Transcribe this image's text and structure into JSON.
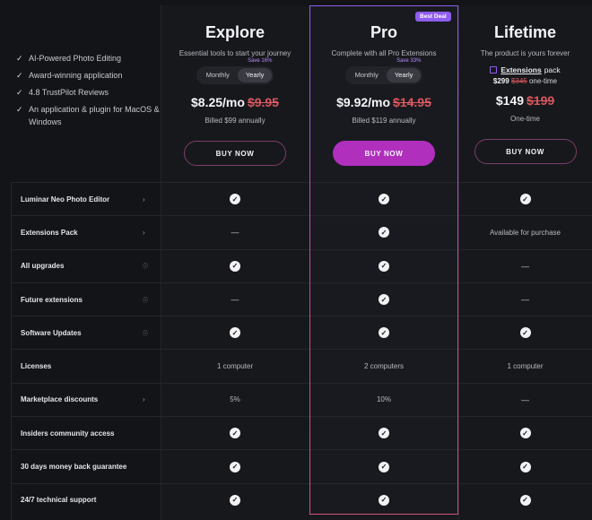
{
  "features": [
    "AI-Powered Photo Editing",
    "Award-winning application",
    "4.8 TrustPilot Reviews",
    "An application & plugin for MacOS & Windows"
  ],
  "plans": {
    "explore": {
      "title": "Explore",
      "subtitle": "Essential tools to start your journey",
      "toggle_monthly": "Monthly",
      "toggle_yearly": "Yearly",
      "save": "Save 16%",
      "price": "$8.25/mo",
      "old_price": "$9.95",
      "billed": "Billed $99 annually",
      "button": "BUY NOW"
    },
    "pro": {
      "badge": "Best Deal",
      "title": "Pro",
      "subtitle": "Complete with all Pro Extensions",
      "toggle_monthly": "Monthly",
      "toggle_yearly": "Yearly",
      "save": "Save 33%",
      "price": "$9.92/mo",
      "old_price": "$14.95",
      "billed": "Billed $119 annually",
      "button": "BUY NOW"
    },
    "lifetime": {
      "title": "Lifetime",
      "subtitle": "The product is yours forever",
      "ext_label": "Extensions",
      "ext_suffix": "pack",
      "ext_price": "$299",
      "ext_old_price": "$345",
      "ext_note": "one-time",
      "price": "$149",
      "old_price": "$199",
      "billed": "One-time",
      "button": "BUY NOW"
    }
  },
  "rows": [
    {
      "label": "Luminar Neo Photo Editor",
      "info": "›",
      "explore": "check",
      "pro": "check",
      "lifetime": "check"
    },
    {
      "label": "Extensions Pack",
      "info": "›",
      "explore": "—",
      "pro": "check",
      "lifetime": "Available for purchase"
    },
    {
      "label": "All upgrades",
      "info": "i",
      "explore": "check",
      "pro": "check",
      "lifetime": "—"
    },
    {
      "label": "Future extensions",
      "info": "i",
      "explore": "—",
      "pro": "check",
      "lifetime": "—"
    },
    {
      "label": "Software Updates",
      "info": "i",
      "explore": "check",
      "pro": "check",
      "lifetime": "check"
    },
    {
      "label": "Licenses",
      "info": "",
      "explore": "1 computer",
      "pro": "2 computers",
      "lifetime": "1 computer"
    },
    {
      "label": "Marketplace discounts",
      "info": "›",
      "explore": "5%",
      "pro": "10%",
      "lifetime": "—"
    },
    {
      "label": "Insiders community access",
      "info": "",
      "explore": "check",
      "pro": "check",
      "lifetime": "check"
    },
    {
      "label": "30 days money back guarantee",
      "info": "",
      "explore": "check",
      "pro": "check",
      "lifetime": "check"
    },
    {
      "label": "24/7 technical support",
      "info": "",
      "explore": "check",
      "pro": "check",
      "lifetime": "check"
    }
  ],
  "colors": {
    "accent": "#b02fbd",
    "badge": "#8f5cf0",
    "strike": "#d7575e"
  },
  "icons": {
    "feature_check": "check-icon",
    "row_check": "check-circle-icon",
    "row_chevron": "chevron-right-icon",
    "row_info": "info-icon"
  }
}
